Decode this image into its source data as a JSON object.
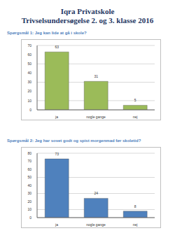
{
  "title": "Iqra Privatskole",
  "subtitle": "Trivselsundersøgelse 2. og 3. klasse 2016",
  "chart_data": [
    {
      "type": "bar",
      "title": "Spørgsmål 1: Jeg kan lide at gå i skole?",
      "categories": [
        "ja",
        "nogle gange",
        "nej"
      ],
      "values": [
        63,
        31,
        5
      ],
      "color": "#9bbb59",
      "ylim": [
        0,
        70
      ],
      "yticks": [
        0,
        10,
        20,
        30,
        40,
        50,
        60,
        70
      ],
      "grid": true,
      "data_labels": true
    },
    {
      "type": "bar",
      "title": "Spørgsmål 2: Jeg har sovet godt og spist morgenmad før skoletid?",
      "categories": [
        "ja",
        "nogle gange",
        "nej"
      ],
      "values": [
        73,
        24,
        8
      ],
      "color": "#4f81bd",
      "ylim": [
        0,
        80
      ],
      "yticks": [
        0,
        10,
        20,
        30,
        40,
        50,
        60,
        70,
        80
      ],
      "grid": true,
      "data_labels": true
    }
  ]
}
